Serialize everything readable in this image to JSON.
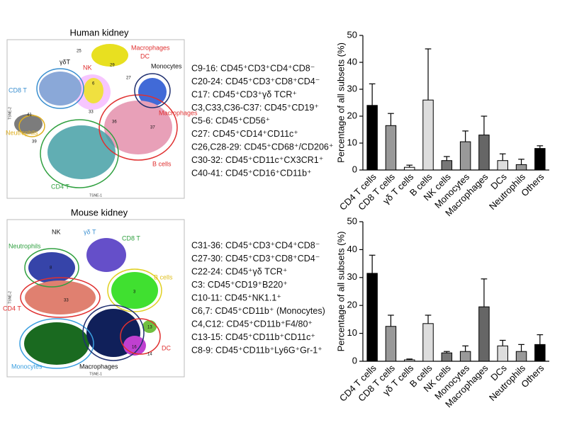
{
  "panels": [
    {
      "title": "Human kidney",
      "labels": [
        "Macrophages",
        "DC",
        "Monocytes",
        "NK",
        "γδT",
        "CD8 T",
        "Neutrophils",
        "CD4 T",
        "B cells",
        "Macrophages"
      ],
      "clusters": [
        "25",
        "29",
        "33",
        "36",
        "37",
        "39",
        "41",
        "6",
        "27"
      ],
      "xaxis": "TSNE-1",
      "yaxis": "TSNE-2",
      "markers": [
        "C9-16: CD45⁺CD3⁺CD4⁺CD8⁻",
        "C20-24: CD45⁺CD3⁺CD8⁺CD4⁻",
        "C17: CD45⁺CD3⁺γδ TCR⁺",
        "C3,C33,C36-C37: CD45⁺CD19⁺",
        "C5-6: CD45⁺CD56⁺",
        "C27: CD45⁺CD14⁺CD11c⁺",
        "C26,C28-29: CD45⁺CD68⁺/CD206⁺",
        "C30-32: CD45⁺CD11c⁺CX3CR1⁺",
        "C40-41: CD45⁺CD16⁺CD11b⁺"
      ]
    },
    {
      "title": "Mouse kidney",
      "labels": [
        "NK",
        "γδ T",
        "CD8 T",
        "Neutrophils",
        "B cells",
        "CD4 T",
        "DC",
        "Monocytes",
        "Macrophages"
      ],
      "clusters": [
        "8",
        "3",
        "33",
        "13",
        "16",
        "14"
      ],
      "xaxis": "TSNE-1",
      "yaxis": "TSNE-2",
      "markers": [
        "C31-36: CD45⁺CD3⁺CD4⁺CD8⁻",
        "C27-30: CD45⁺CD3⁺CD8⁺CD4⁻",
        "C22-24: CD45⁺γδ TCR⁺",
        "C3: CD45⁺CD19⁺B220⁺",
        "C10-11: CD45⁺NK1.1⁺",
        "C6,7: CD45⁺CD11b⁺ (Monocytes)",
        "C4,C12: CD45⁺CD11b⁺F4/80⁺",
        "C13-15: CD45⁺CD11b⁺CD11c⁺",
        "C8-9: CD45⁺CD11b⁺Ly6G⁺Gr-1⁺"
      ]
    }
  ],
  "chart_data": [
    {
      "type": "bar",
      "ylabel": "Percentage of all subsets (%)",
      "categories": [
        "CD4 T cells",
        "CD8 T cells",
        "γδ T cells",
        "B cells",
        "NK cells",
        "Monocytes",
        "Macrophages",
        "DCs",
        "Neutrophils",
        "Others"
      ],
      "values": [
        24,
        16.5,
        1,
        26,
        3.5,
        10.5,
        13,
        3.5,
        2,
        8
      ],
      "errors": [
        8,
        4.5,
        0.8,
        19,
        1.5,
        4,
        7,
        2.5,
        2,
        1
      ],
      "colors": [
        "#000000",
        "#999999",
        "#ffffff",
        "#dddddd",
        "#777777",
        "#999999",
        "#666666",
        "#dddddd",
        "#999999",
        "#000000"
      ],
      "ylim": [
        0,
        50
      ],
      "yticks": [
        0,
        10,
        20,
        30,
        40,
        50
      ]
    },
    {
      "type": "bar",
      "ylabel": "Percentage of all subsets (%)",
      "categories": [
        "CD4 T cells",
        "CD8 T cells",
        "γδ T cells",
        "B cells",
        "NK cells",
        "Monocytes",
        "Macrophages",
        "DCs",
        "Neutrophils",
        "Others"
      ],
      "values": [
        31.5,
        12.5,
        0.5,
        13.5,
        3,
        3.5,
        19.5,
        5.5,
        3.5,
        6
      ],
      "errors": [
        6.5,
        4,
        0.3,
        3,
        0.5,
        2,
        10,
        2,
        2.5,
        3.5
      ],
      "colors": [
        "#000000",
        "#999999",
        "#ffffff",
        "#dddddd",
        "#777777",
        "#999999",
        "#666666",
        "#dddddd",
        "#999999",
        "#000000"
      ],
      "ylim": [
        0,
        50
      ],
      "yticks": [
        0,
        10,
        20,
        30,
        40,
        50
      ]
    }
  ]
}
